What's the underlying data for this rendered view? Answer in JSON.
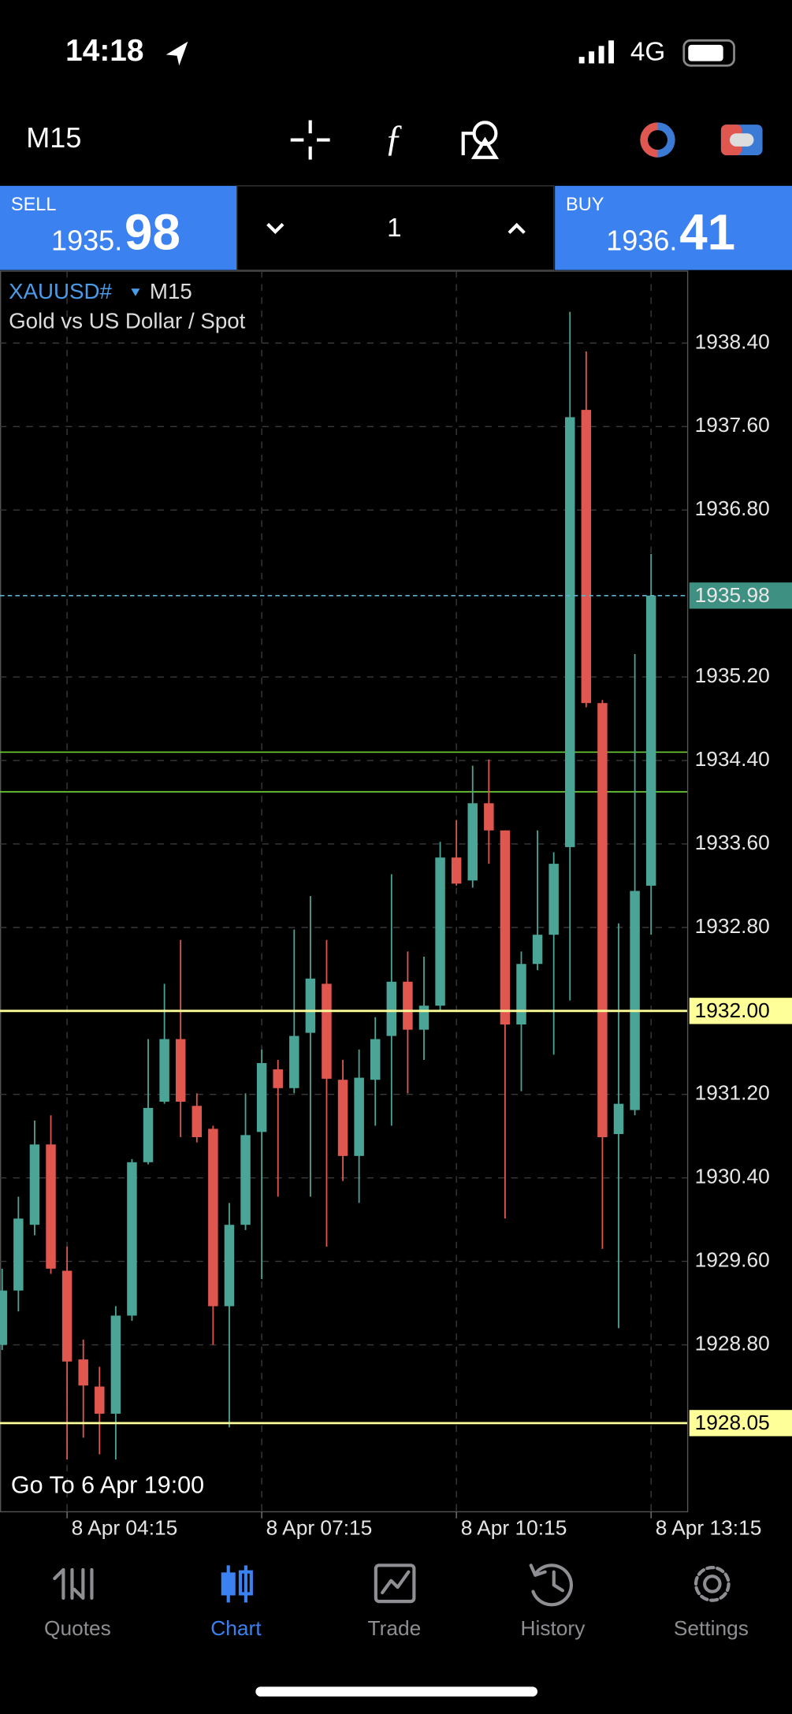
{
  "status_bar": {
    "time": "14:18",
    "network": "4G"
  },
  "toolbar": {
    "timeframe": "M15"
  },
  "trade_panel": {
    "sell": {
      "label": "SELL",
      "price_main": "1935.",
      "price_big": "98"
    },
    "volume": "1",
    "buy": {
      "label": "BUY",
      "price_main": "1936.",
      "price_big": "41"
    }
  },
  "chart_info": {
    "symbol": "XAUUSD#",
    "timeframe": "M15",
    "description": "Gold vs US Dollar / Spot",
    "goto": "Go To 6 Apr 19:00"
  },
  "chart_data": {
    "type": "candlestick",
    "categories": [
      null,
      null,
      null,
      null,
      "8 Apr 04:15",
      null,
      null,
      null,
      null,
      null,
      null,
      null,
      null,
      null,
      null,
      null,
      "8 Apr 07:15",
      null,
      null,
      null,
      null,
      null,
      null,
      null,
      null,
      null,
      null,
      null,
      "8 Apr 10:15",
      null,
      null,
      null,
      null,
      null,
      null,
      null,
      null,
      null,
      null,
      null,
      "8 Apr 13:15"
    ],
    "open": [
      1928.8,
      1929.32,
      1929.95,
      1930.72,
      1929.51,
      1928.66,
      1928.4,
      1928.14,
      1929.08,
      1930.55,
      1931.13,
      1931.73,
      1931.09,
      1930.87,
      1929.17,
      1929.95,
      1930.84,
      1931.44,
      1931.26,
      1931.79,
      1932.26,
      1931.34,
      1930.61,
      1931.34,
      1931.76,
      1932.28,
      1931.82,
      1932.05,
      1933.47,
      1933.25,
      1933.99,
      1933.73,
      1931.87,
      1932.45,
      1932.73,
      1933.57,
      1937.76,
      1934.95,
      1930.82,
      1931.05,
      1933.2
    ],
    "high": [
      1929.53,
      1930.22,
      1930.95,
      1931.0,
      1929.74,
      1928.85,
      1928.59,
      1929.17,
      1930.58,
      1931.73,
      1932.26,
      1932.68,
      1931.21,
      1930.9,
      1930.16,
      1931.21,
      1931.63,
      1931.53,
      1932.78,
      1933.1,
      1932.68,
      1931.53,
      1931.63,
      1931.94,
      1933.31,
      1932.57,
      1932.52,
      1933.62,
      1933.83,
      1934.35,
      1934.41,
      1933.73,
      1932.57,
      1933.73,
      1933.52,
      1938.7,
      1938.32,
      1934.98,
      1932.84,
      1935.42,
      1936.38
    ],
    "low": [
      1928.75,
      1929.12,
      1929.85,
      1929.48,
      1927.7,
      1927.91,
      1927.75,
      1927.7,
      1929.03,
      1930.53,
      1931.11,
      1930.79,
      1930.74,
      1928.8,
      1928.01,
      1929.9,
      1929.43,
      1930.22,
      1931.21,
      1930.22,
      1929.74,
      1930.37,
      1930.16,
      1930.9,
      1930.9,
      1931.21,
      1931.53,
      1932.0,
      1933.2,
      1933.18,
      1933.41,
      1930.01,
      1931.23,
      1932.39,
      1931.58,
      1932.1,
      1934.91,
      1929.72,
      1928.96,
      1931.0,
      1932.73
    ],
    "close": [
      1929.32,
      1930.01,
      1930.72,
      1929.53,
      1928.64,
      1928.41,
      1928.14,
      1929.08,
      1930.55,
      1931.07,
      1931.73,
      1931.13,
      1930.79,
      1929.17,
      1929.95,
      1930.81,
      1931.5,
      1931.26,
      1931.76,
      1932.31,
      1931.35,
      1930.61,
      1931.36,
      1931.73,
      1932.28,
      1931.82,
      1932.05,
      1933.47,
      1933.22,
      1933.99,
      1933.73,
      1931.87,
      1932.45,
      1932.73,
      1933.41,
      1937.69,
      1934.95,
      1930.79,
      1931.11,
      1933.15,
      1935.98
    ],
    "up_color": "#4aa596",
    "down_color": "#e0574f",
    "ylim": [
      1927.2,
      1939.09
    ],
    "yticks": [
      {
        "value": 1938.4,
        "label": "1938.40"
      },
      {
        "value": 1937.6,
        "label": "1937.60"
      },
      {
        "value": 1936.8,
        "label": "1936.80"
      },
      {
        "value": 1935.2,
        "label": "1935.20"
      },
      {
        "value": 1934.4,
        "label": "1934.40"
      },
      {
        "value": 1933.6,
        "label": "1933.60"
      },
      {
        "value": 1932.8,
        "label": "1932.80"
      },
      {
        "value": 1931.2,
        "label": "1931.20"
      },
      {
        "value": 1930.4,
        "label": "1930.40"
      },
      {
        "value": 1929.6,
        "label": "1929.60"
      },
      {
        "value": 1928.8,
        "label": "1928.80"
      }
    ],
    "grid": true,
    "price_lines": [
      {
        "value": 1935.98,
        "label": "1935.98",
        "color": "#5bb3cf",
        "box": "#3e9182",
        "text_color": "#e8e8e8",
        "style": "dashed"
      },
      {
        "value": 1932.0,
        "label": "1932.00",
        "color": "#ffff99",
        "box": "#ffff99",
        "text_color": "#000000",
        "style": "solid"
      },
      {
        "value": 1928.05,
        "label": "1928.05",
        "color": "#ffff99",
        "box": "#ffff99",
        "text_color": "#000000",
        "style": "solid"
      }
    ],
    "levels": [
      {
        "value": 1934.48,
        "color": "#6fd13a"
      },
      {
        "value": 1934.1,
        "color": "#6fd13a"
      }
    ]
  },
  "nav": {
    "items": [
      "Quotes",
      "Chart",
      "Trade",
      "History",
      "Settings"
    ],
    "active": 1
  }
}
